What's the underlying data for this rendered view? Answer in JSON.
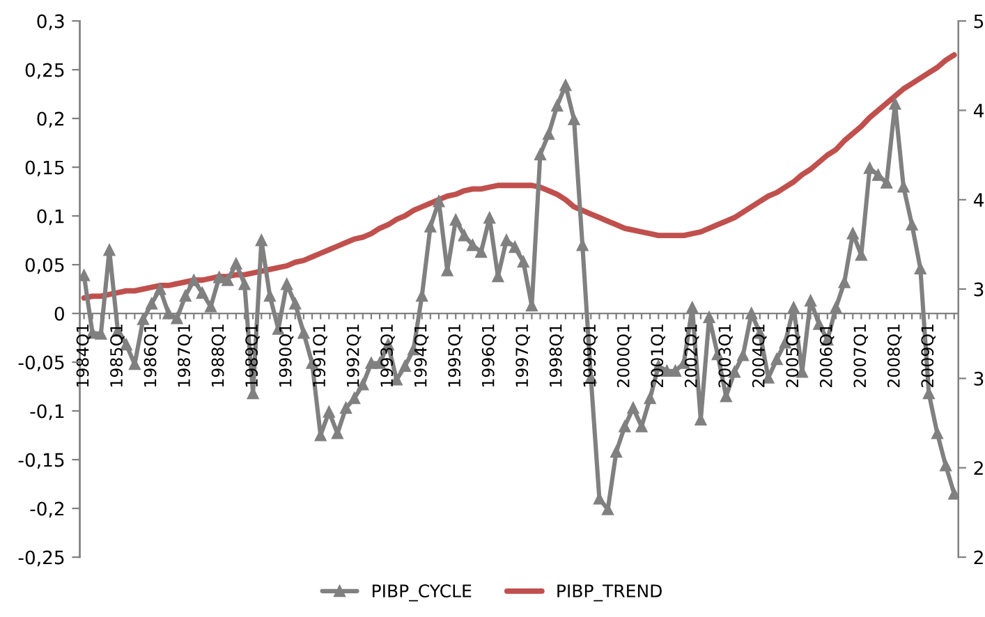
{
  "chart_data": {
    "type": "line",
    "categories": [
      "1984Q1",
      null,
      null,
      null,
      "1985Q1",
      null,
      null,
      null,
      "1986Q1",
      null,
      null,
      null,
      "1987Q1",
      null,
      null,
      null,
      "1988Q1",
      null,
      null,
      null,
      "1989Q1",
      null,
      null,
      null,
      "1990Q1",
      null,
      null,
      null,
      "1991Q1",
      null,
      null,
      null,
      "1992Q1",
      null,
      null,
      null,
      "1993Q1",
      null,
      null,
      null,
      "1994Q1",
      null,
      null,
      null,
      "1995Q1",
      null,
      null,
      null,
      "1996Q1",
      null,
      null,
      null,
      "1997Q1",
      null,
      null,
      null,
      "1998Q1",
      null,
      null,
      null,
      "1999Q1",
      null,
      null,
      null,
      "2000Q1",
      null,
      null,
      null,
      "2001Q1",
      null,
      null,
      null,
      "2002Q1",
      null,
      null,
      null,
      "2003Q1",
      null,
      null,
      null,
      "2004Q1",
      null,
      null,
      null,
      "2005Q1",
      null,
      null,
      null,
      "2006Q1",
      null,
      null,
      null,
      "2007Q1",
      null,
      null,
      null,
      "2008Q1",
      null,
      null,
      null,
      "2009Q1",
      null,
      null,
      null
    ],
    "series": [
      {
        "name": "PIBP_CYCLE",
        "color": "#808080",
        "marker": "triangle",
        "values": [
          0.039,
          -0.02,
          -0.021,
          0.065,
          -0.018,
          -0.032,
          -0.052,
          -0.006,
          0.01,
          0.025,
          0,
          -0.005,
          0.018,
          0.034,
          0.021,
          0.007,
          0.037,
          0.034,
          0.051,
          0.03,
          -0.082,
          0.075,
          0.018,
          -0.016,
          0.03,
          0.01,
          -0.02,
          -0.051,
          -0.125,
          -0.101,
          -0.123,
          -0.097,
          -0.087,
          -0.073,
          -0.051,
          -0.051,
          -0.032,
          -0.068,
          -0.054,
          -0.037,
          0.018,
          0.089,
          0.115,
          0.044,
          0.096,
          0.08,
          0.07,
          0.063,
          0.098,
          0.038,
          0.075,
          0.068,
          0.053,
          0.008,
          0.163,
          0.184,
          0.213,
          0.234,
          0.199,
          0.07,
          -0.066,
          -0.19,
          -0.201,
          -0.142,
          -0.116,
          -0.097,
          -0.116,
          -0.087,
          -0.054,
          -0.059,
          -0.059,
          -0.051,
          0.006,
          -0.109,
          -0.004,
          -0.042,
          -0.085,
          -0.06,
          -0.043,
          0,
          -0.02,
          -0.066,
          -0.047,
          -0.03,
          0.006,
          -0.06,
          0.013,
          -0.011,
          -0.027,
          0.006,
          0.032,
          0.082,
          0.06,
          0.149,
          0.142,
          0.134,
          0.215,
          0.13,
          0.091,
          0.046,
          -0.082,
          -0.123,
          -0.156,
          -0.185
        ]
      },
      {
        "name": "PIBP_TREND",
        "color": "#c0504d",
        "marker": "none",
        "axis": "y2",
        "values": [
          3.45,
          3.46,
          3.46,
          3.47,
          3.48,
          3.49,
          3.49,
          3.5,
          3.51,
          3.52,
          3.52,
          3.53,
          3.54,
          3.55,
          3.55,
          3.56,
          3.57,
          3.57,
          3.58,
          3.58,
          3.59,
          3.6,
          3.61,
          3.62,
          3.63,
          3.65,
          3.66,
          3.68,
          3.7,
          3.72,
          3.74,
          3.76,
          3.78,
          3.79,
          3.81,
          3.84,
          3.86,
          3.89,
          3.91,
          3.94,
          3.96,
          3.98,
          4.0,
          4.02,
          4.03,
          4.05,
          4.06,
          4.06,
          4.07,
          4.08,
          4.08,
          4.08,
          4.08,
          4.08,
          4.07,
          4.05,
          4.03,
          4.0,
          3.96,
          3.94,
          3.92,
          3.9,
          3.88,
          3.86,
          3.84,
          3.83,
          3.82,
          3.81,
          3.8,
          3.8,
          3.8,
          3.8,
          3.81,
          3.82,
          3.84,
          3.86,
          3.88,
          3.9,
          3.93,
          3.96,
          3.99,
          4.02,
          4.04,
          4.07,
          4.1,
          4.14,
          4.17,
          4.21,
          4.25,
          4.28,
          4.33,
          4.37,
          4.41,
          4.46,
          4.5,
          4.54,
          4.58,
          4.62,
          4.65,
          4.68,
          4.71,
          4.74,
          4.78,
          4.81
        ]
      }
    ],
    "ylim": [
      -0.25,
      0.3
    ],
    "yticks": [
      {
        "value": -0.25,
        "label": "-0,25"
      },
      {
        "value": -0.2,
        "label": "-0,2"
      },
      {
        "value": -0.15,
        "label": "-0,15"
      },
      {
        "value": -0.1,
        "label": "-0,1"
      },
      {
        "value": -0.05,
        "label": "-0,05"
      },
      {
        "value": 0,
        "label": "0"
      },
      {
        "value": 0.05,
        "label": "0,05"
      },
      {
        "value": 0.1,
        "label": "0,1"
      },
      {
        "value": 0.15,
        "label": "0,15"
      },
      {
        "value": 0.2,
        "label": "0,2"
      },
      {
        "value": 0.25,
        "label": "0,25"
      },
      {
        "value": 0.3,
        "label": "0,3"
      }
    ],
    "y2lim": [
      2,
      5
    ],
    "y2ticks": [
      {
        "value": 2,
        "label": "2"
      },
      {
        "value": 2.5,
        "label": "2"
      },
      {
        "value": 3,
        "label": "3"
      },
      {
        "value": 3.5,
        "label": "3"
      },
      {
        "value": 4,
        "label": "4"
      },
      {
        "value": 4.5,
        "label": "4"
      },
      {
        "value": 5,
        "label": "5"
      }
    ],
    "grid": false,
    "legend": "bottom",
    "line_style": "solid"
  }
}
